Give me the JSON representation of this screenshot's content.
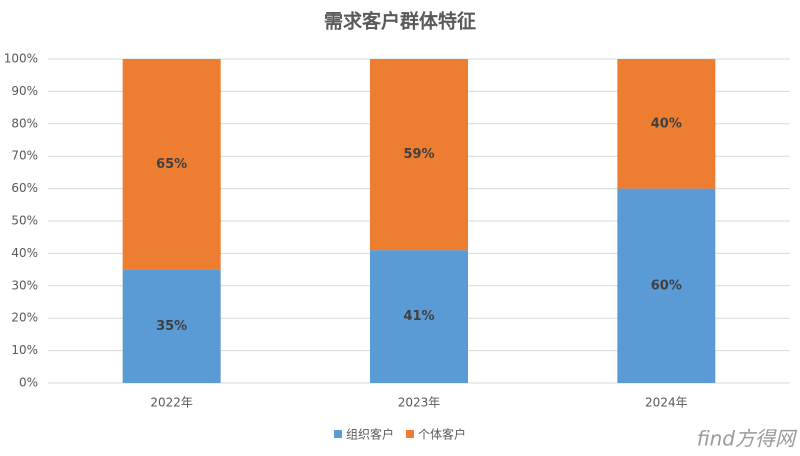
{
  "chart_data": {
    "type": "stacked_bar",
    "title": "需求客户群体特征",
    "categories": [
      "2022年",
      "2023年",
      "2024年"
    ],
    "series": [
      {
        "name": "组织客户",
        "color": "#5b9bd5",
        "values": [
          35,
          41,
          60
        ],
        "value_labels": [
          "35%",
          "41%",
          "60%"
        ]
      },
      {
        "name": "个体客户",
        "color": "#ed7d31",
        "values": [
          65,
          59,
          40
        ],
        "value_labels": [
          "65%",
          "59%",
          "40%"
        ]
      }
    ],
    "ylim": [
      0,
      100
    ],
    "yticks": [
      {
        "value": 0,
        "label": "0%"
      },
      {
        "value": 10,
        "label": "10%"
      },
      {
        "value": 20,
        "label": "20%"
      },
      {
        "value": 30,
        "label": "30%"
      },
      {
        "value": 40,
        "label": "40%"
      },
      {
        "value": 50,
        "label": "50%"
      },
      {
        "value": 60,
        "label": "60%"
      },
      {
        "value": 70,
        "label": "70%"
      },
      {
        "value": 80,
        "label": "80%"
      },
      {
        "value": 90,
        "label": "90%"
      },
      {
        "value": 100,
        "label": "100%"
      }
    ],
    "grid": true,
    "legend": "bottom",
    "watermark": "find方得网"
  }
}
